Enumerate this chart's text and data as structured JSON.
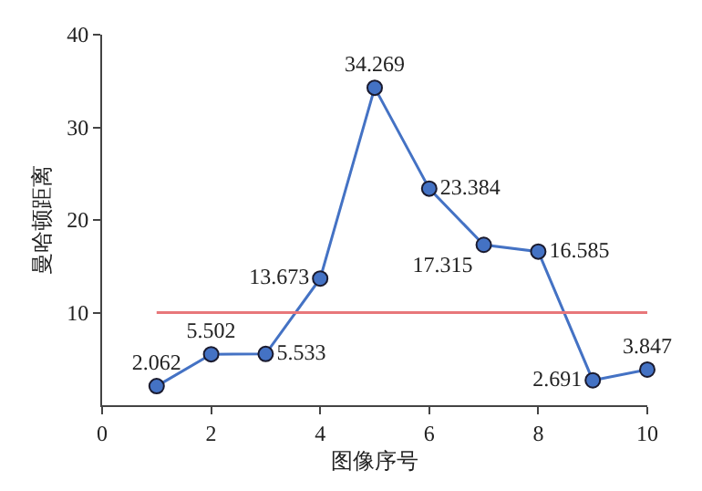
{
  "chart_data": {
    "type": "line",
    "xlabel": "图像序号",
    "ylabel": "曼哈顿距离",
    "xlim": [
      0,
      10
    ],
    "xticks": [
      0,
      2,
      4,
      6,
      8,
      10
    ],
    "ylim": [
      0,
      40
    ],
    "yticks": [
      10,
      20,
      30,
      40
    ],
    "marker": "circle",
    "line_style": "solid",
    "series": [
      {
        "color": "#4472c4",
        "x": [
          1,
          2,
          3,
          4,
          5,
          6,
          7,
          8,
          9,
          10
        ],
        "values": [
          2.062,
          5.502,
          5.533,
          13.673,
          34.269,
          23.384,
          17.315,
          16.585,
          2.691,
          3.847
        ],
        "value_labels": [
          "2.062",
          "5.502",
          "5.533",
          "13.673",
          "34.269",
          "23.384",
          "17.315",
          "16.585",
          "2.691",
          "3.847"
        ]
      },
      {
        "color": "#e8777a",
        "x": [
          1,
          10
        ],
        "values": [
          10,
          10
        ],
        "marker": "none"
      }
    ]
  }
}
